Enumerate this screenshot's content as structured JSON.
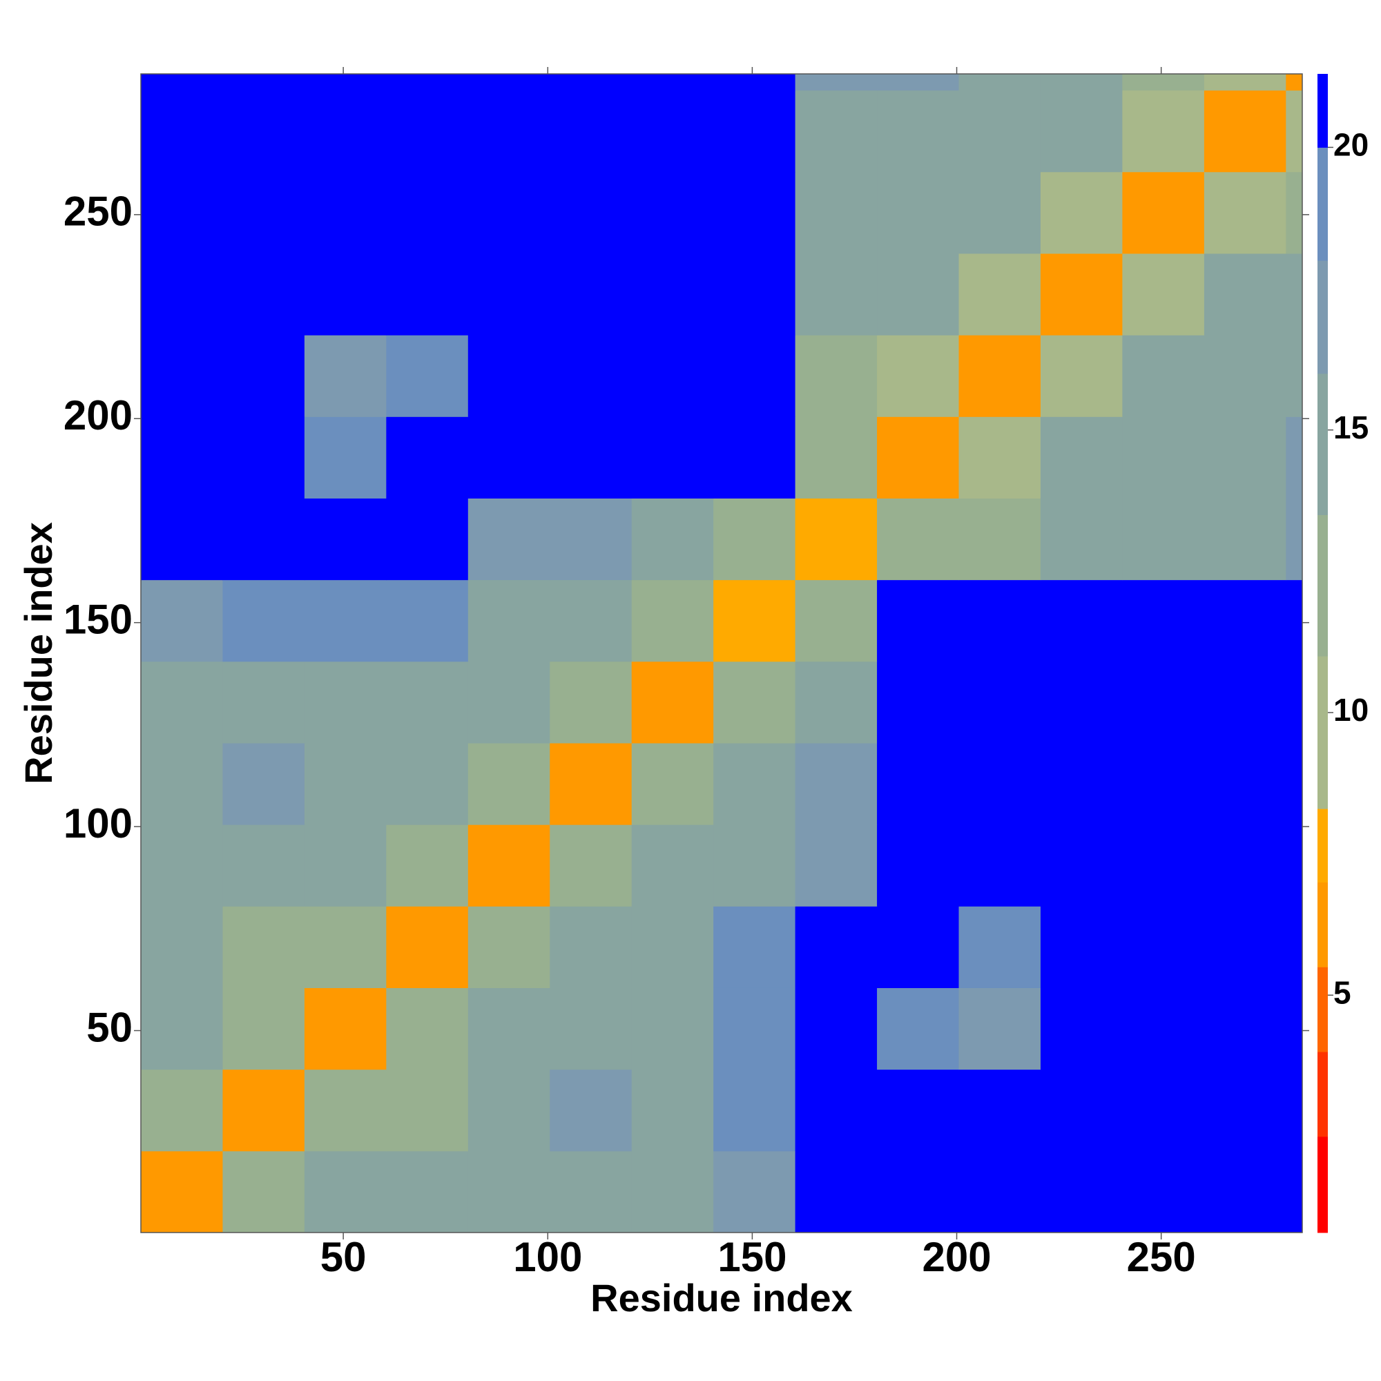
{
  "chart_data": {
    "type": "heatmap",
    "xlabel": "Residue index",
    "ylabel": "Residue index",
    "xlim": [
      0.5,
      284.5
    ],
    "ylim": [
      0.5,
      284.5
    ],
    "xticks": [
      50,
      100,
      150,
      200,
      250
    ],
    "yticks": [
      50,
      100,
      150,
      200,
      250
    ],
    "xbins": [
      0.5,
      20.5,
      40.5,
      60.5,
      80.5,
      100.5,
      120.5,
      140.5,
      160.5,
      180.5,
      200.5,
      220.5,
      240.5,
      260.5,
      280.5,
      284.5
    ],
    "ybins": [
      0.5,
      20.5,
      40.5,
      60.5,
      80.5,
      100.5,
      120.5,
      140.5,
      160.5,
      180.5,
      200.5,
      220.5,
      240.5,
      260.5,
      280.5,
      284.5
    ],
    "z": [
      [
        7,
        12,
        15,
        16,
        14,
        14,
        14,
        18,
        21,
        21,
        21,
        21,
        21,
        21,
        21
      ],
      [
        12,
        7,
        12,
        13,
        15,
        17,
        15,
        20,
        21,
        21,
        21,
        21,
        21,
        21,
        21
      ],
      [
        15,
        12,
        7,
        12,
        16,
        16,
        16,
        20,
        21,
        19,
        18,
        21,
        21,
        21,
        21
      ],
      [
        16,
        13,
        12,
        7,
        12,
        14,
        16,
        19,
        21,
        21,
        19,
        21,
        21,
        21,
        21
      ],
      [
        14,
        15,
        16,
        12,
        7,
        12,
        14,
        15,
        18,
        21,
        21,
        21,
        21,
        21,
        21
      ],
      [
        14,
        17,
        16,
        14,
        12,
        7,
        12,
        14,
        17,
        21,
        21,
        21,
        21,
        21,
        21
      ],
      [
        14,
        15,
        16,
        16,
        14,
        12,
        7,
        12,
        14,
        21,
        21,
        21,
        21,
        21,
        21
      ],
      [
        18,
        20,
        20,
        19,
        15,
        14,
        12,
        8,
        12,
        21,
        21,
        21,
        21,
        21,
        21
      ],
      [
        21,
        21,
        21,
        21,
        18,
        17,
        14,
        12,
        8,
        12,
        13,
        14,
        15,
        16,
        18
      ],
      [
        21,
        21,
        19,
        21,
        21,
        21,
        21,
        21,
        12,
        7,
        11,
        14,
        15,
        16,
        17
      ],
      [
        21,
        21,
        18,
        19,
        21,
        21,
        21,
        21,
        13,
        11,
        7,
        11,
        14,
        15,
        16
      ],
      [
        21,
        21,
        21,
        21,
        21,
        21,
        21,
        21,
        14,
        14,
        11,
        7,
        11,
        14,
        16
      ],
      [
        21,
        21,
        21,
        21,
        21,
        21,
        21,
        21,
        15,
        15,
        14,
        11,
        7,
        11,
        13
      ],
      [
        21,
        21,
        21,
        21,
        21,
        21,
        21,
        21,
        16,
        16,
        15,
        14,
        11,
        7,
        10
      ],
      [
        21,
        21,
        21,
        21,
        21,
        21,
        21,
        21,
        18,
        17,
        16,
        16,
        13,
        10,
        7
      ]
    ],
    "zlim": [
      0.8,
      21.3
    ],
    "zticks": [
      5,
      10,
      15,
      20
    ],
    "levels": [
      0.8,
      2.5,
      4,
      5.5,
      7,
      8.3,
      11,
      13.5,
      16,
      18,
      20,
      21.3
    ],
    "colors": [
      "#ff0000",
      "#ff3300",
      "#ff6600",
      "#ff9900",
      "#ffaa00",
      "#a8b88a",
      "#98b090",
      "#88a5a0",
      "#7d9ab0",
      "#6b8fbe",
      "#0000ff"
    ]
  }
}
